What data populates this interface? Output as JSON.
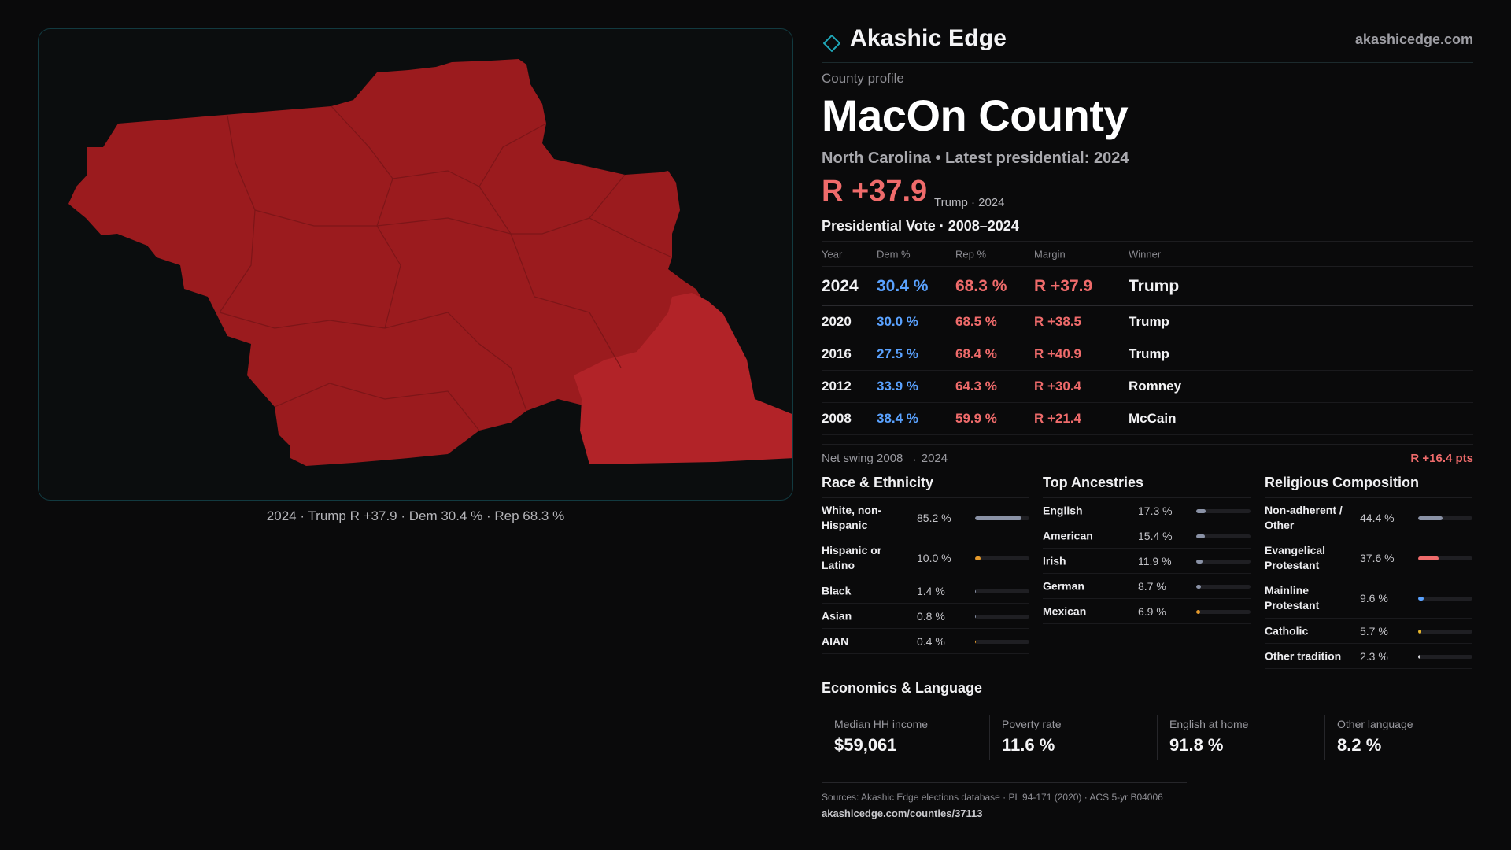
{
  "map": {
    "caption": "2024 · Trump R +37.9 · Dem 30.4 % · Rep 68.3 %",
    "colors": {
      "main": "#9b1b1e",
      "highlight": "#b22328",
      "boundary": "#7a1417"
    }
  },
  "brand": {
    "name": "Akashic Edge",
    "url": "akashicedge.com",
    "logo_icon": "diamond-outline-icon"
  },
  "profile": {
    "label": "County profile",
    "title": "MacOn County",
    "subtitle": "North Carolina • Latest presidential: 2024",
    "margin": "R +37.9",
    "margin_note": "Trump · 2024"
  },
  "vote": {
    "title": "Presidential Vote · 2008–2024",
    "headers": {
      "year": "Year",
      "dem": "Dem %",
      "rep": "Rep %",
      "margin": "Margin",
      "winner": "Winner"
    },
    "rows": [
      {
        "year": "2024",
        "dem": "30.4 %",
        "rep": "68.3 %",
        "margin": "R +37.9",
        "winner": "Trump"
      },
      {
        "year": "2020",
        "dem": "30.0 %",
        "rep": "68.5 %",
        "margin": "R +38.5",
        "winner": "Trump"
      },
      {
        "year": "2016",
        "dem": "27.5 %",
        "rep": "68.4 %",
        "margin": "R +40.9",
        "winner": "Trump"
      },
      {
        "year": "2012",
        "dem": "33.9 %",
        "rep": "64.3 %",
        "margin": "R +30.4",
        "winner": "Romney"
      },
      {
        "year": "2008",
        "dem": "38.4 %",
        "rep": "59.9 %",
        "margin": "R +21.4",
        "winner": "McCain"
      }
    ],
    "swing_label": "Net swing 2008 → 2024",
    "swing_value": "R +16.4 pts"
  },
  "race": {
    "title": "Race & Ethnicity",
    "items": [
      {
        "label": "White, non-Hispanic",
        "value": "85.2 %",
        "pct": 85.2,
        "color": "#8a92a6"
      },
      {
        "label": "Hispanic or Latino",
        "value": "10.0 %",
        "pct": 10.0,
        "color": "#e59a2b"
      },
      {
        "label": "Black",
        "value": "1.4 %",
        "pct": 1.4,
        "color": "#8a92a6"
      },
      {
        "label": "Asian",
        "value": "0.8 %",
        "pct": 0.8,
        "color": "#8a92a6"
      },
      {
        "label": "AIAN",
        "value": "0.4 %",
        "pct": 0.4,
        "color": "#e59a2b"
      }
    ]
  },
  "ancestries": {
    "title": "Top Ancestries",
    "items": [
      {
        "label": "English",
        "value": "17.3 %",
        "pct": 17.3,
        "color": "#8a92a6"
      },
      {
        "label": "American",
        "value": "15.4 %",
        "pct": 15.4,
        "color": "#8a92a6"
      },
      {
        "label": "Irish",
        "value": "11.9 %",
        "pct": 11.9,
        "color": "#8a92a6"
      },
      {
        "label": "German",
        "value": "8.7 %",
        "pct": 8.7,
        "color": "#8a92a6"
      },
      {
        "label": "Mexican",
        "value": "6.9 %",
        "pct": 6.9,
        "color": "#e59a2b"
      }
    ]
  },
  "religion": {
    "title": "Religious Composition",
    "items": [
      {
        "label": "Non-adherent / Other",
        "value": "44.4 %",
        "pct": 44.4,
        "color": "#8a92a6"
      },
      {
        "label": "Evangelical Protestant",
        "value": "37.6 %",
        "pct": 37.6,
        "color": "#ef6b6b"
      },
      {
        "label": "Mainline Protestant",
        "value": "9.6 %",
        "pct": 9.6,
        "color": "#5aa2ff"
      },
      {
        "label": "Catholic",
        "value": "5.7 %",
        "pct": 5.7,
        "color": "#e5b52b"
      },
      {
        "label": "Other tradition",
        "value": "2.3 %",
        "pct": 2.3,
        "color": "#d8d8dc"
      }
    ]
  },
  "economics": {
    "title": "Economics & Language",
    "cards": [
      {
        "label": "Median HH income",
        "value": "$59,061"
      },
      {
        "label": "Poverty rate",
        "value": "11.6 %"
      },
      {
        "label": "English at home",
        "value": "91.8 %"
      },
      {
        "label": "Other language",
        "value": "8.2 %"
      }
    ]
  },
  "sources": {
    "text": "Sources: Akashic Edge elections database · PL 94-171 (2020) · ACS 5-yr B04006",
    "url": "akashicedge.com/counties/37113"
  }
}
